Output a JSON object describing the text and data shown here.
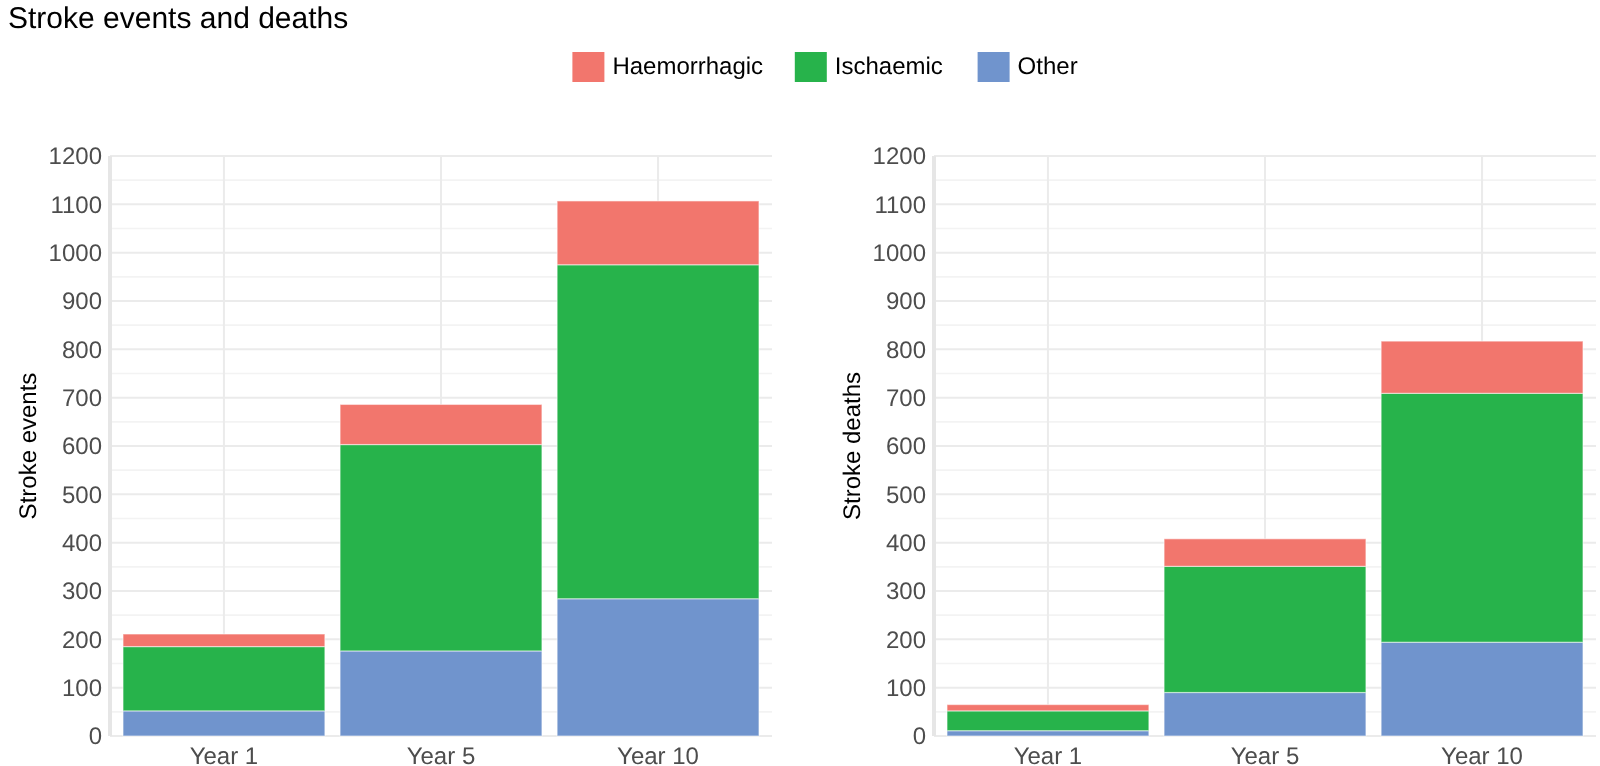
{
  "chart_data": [
    {
      "type": "bar",
      "title": "Stroke events and deaths",
      "ylabel": "Stroke events",
      "categories": [
        "Year 1",
        "Year 5",
        "Year 10"
      ],
      "stacked": true,
      "legend": "top",
      "grid": true,
      "ylim": [
        0,
        1200
      ],
      "yticks": [
        0,
        100,
        200,
        300,
        400,
        500,
        600,
        700,
        800,
        900,
        1000,
        1100,
        1200
      ],
      "series": [
        {
          "name": "Other",
          "color": "#7094cd",
          "values": [
            52,
            176,
            284
          ]
        },
        {
          "name": "Ischaemic",
          "color": "#27b34b",
          "values": [
            133,
            427,
            691
          ]
        },
        {
          "name": "Haemorrhagic",
          "color": "#f2766d",
          "values": [
            26,
            83,
            132
          ]
        }
      ]
    },
    {
      "type": "bar",
      "ylabel": "Stroke deaths",
      "categories": [
        "Year 1",
        "Year 5",
        "Year 10"
      ],
      "stacked": true,
      "grid": true,
      "ylim": [
        0,
        1200
      ],
      "yticks": [
        0,
        100,
        200,
        300,
        400,
        500,
        600,
        700,
        800,
        900,
        1000,
        1100,
        1200
      ],
      "series": [
        {
          "color": "#7094cd",
          "values": [
            11,
            90,
            194
          ]
        },
        {
          "color": "#27b34b",
          "values": [
            41,
            261,
            515
          ]
        },
        {
          "color": "#f2766d",
          "values": [
            13,
            57,
            108
          ]
        }
      ]
    }
  ]
}
